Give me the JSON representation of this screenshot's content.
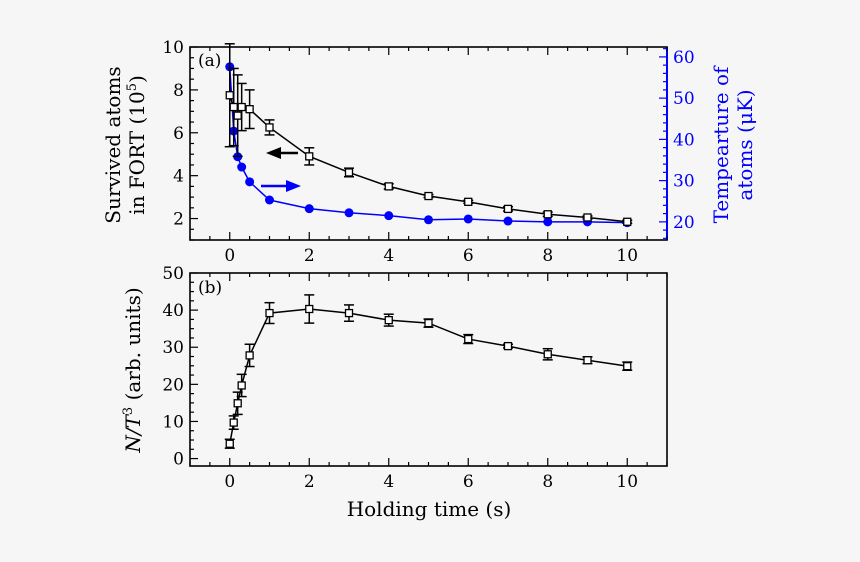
{
  "chart_data": [
    {
      "panel": "(a)",
      "type": "line",
      "title": "",
      "xlabel": "",
      "xlim": [
        -1,
        11
      ],
      "x_ticks": [
        0,
        2,
        4,
        6,
        8,
        10
      ],
      "grid": false,
      "x": [
        0,
        0.1,
        0.2,
        0.3,
        0.5,
        1,
        2,
        3,
        4,
        5,
        6,
        7,
        8,
        9,
        10
      ],
      "y_left": {
        "label": "Survived atoms in FORT (10^5)",
        "label_line1": "Survived atoms",
        "label_line2": "in FORT (10",
        "label_sup": "5",
        "label_close": ")",
        "ylim": [
          1,
          10
        ],
        "ticks": [
          2,
          4,
          6,
          8,
          10
        ],
        "color": "#000000"
      },
      "y_right": {
        "label": "Tempearture of atoms (μK)",
        "label_line1": "Tempearture of",
        "label_line2": "atoms (μK)",
        "ylim": [
          15.6,
          62.4
        ],
        "ticks": [
          20,
          30,
          40,
          50,
          60
        ],
        "color": "#0000ff"
      },
      "series": [
        {
          "name": "Survived atoms",
          "axis": "left",
          "marker": "open-square",
          "color": "#000000",
          "values": [
            7.75,
            7.2,
            6.8,
            7.2,
            7.1,
            6.25,
            4.9,
            4.15,
            3.5,
            3.05,
            2.78,
            2.45,
            2.2,
            2.05,
            1.85
          ],
          "errors": [
            2.4,
            1.8,
            1.9,
            1.1,
            0.9,
            0.35,
            0.4,
            0.2,
            0.12,
            0.07,
            0.07,
            0.1,
            0.1,
            0.07,
            0.07
          ]
        },
        {
          "name": "Temperature",
          "axis": "right",
          "marker": "filled-circle",
          "color": "#0000ff",
          "values": [
            57.6,
            42.0,
            35.8,
            33.3,
            29.7,
            25.3,
            23.2,
            22.2,
            21.5,
            20.5,
            20.7,
            20.2,
            20.0,
            20.0,
            19.8
          ]
        }
      ],
      "annotations": [
        {
          "type": "arrow",
          "direction": "left",
          "color": "#000000",
          "text": "",
          "points_to": "left axis"
        },
        {
          "type": "arrow",
          "direction": "right",
          "color": "#0000ff",
          "text": "",
          "points_to": "right axis"
        }
      ]
    },
    {
      "panel": "(b)",
      "type": "line",
      "title": "",
      "xlabel": "Holding time (s)",
      "ylabel": "N/T^3 (arb. units)",
      "ylabel_parts": {
        "italic": "N/T",
        "sup": "3",
        "rest": " (arb. units)"
      },
      "xlim": [
        -1,
        11
      ],
      "ylim": [
        -2,
        50
      ],
      "x_ticks": [
        0,
        2,
        4,
        6,
        8,
        10
      ],
      "y_ticks": [
        0,
        10,
        20,
        30,
        40,
        50
      ],
      "grid": false,
      "x": [
        0,
        0.1,
        0.2,
        0.3,
        0.5,
        1,
        2,
        3,
        4,
        5,
        6,
        7,
        8,
        9,
        10
      ],
      "series": [
        {
          "name": "N/T^3",
          "marker": "open-square",
          "color": "#000000",
          "values": [
            4.0,
            9.7,
            14.9,
            19.7,
            27.8,
            39.2,
            40.3,
            39.2,
            37.3,
            36.5,
            32.2,
            30.3,
            28.1,
            26.5,
            24.9
          ],
          "errors": [
            1.2,
            1.8,
            3.0,
            3.0,
            3.0,
            2.8,
            3.8,
            2.2,
            1.6,
            1.1,
            1.2,
            0.5,
            1.5,
            0.9,
            1.1
          ]
        }
      ]
    }
  ],
  "labels": {
    "panel_a": "(a)",
    "panel_b": "(b)",
    "xlabel": "Holding time (s)",
    "left_a_line1": "Survived atoms",
    "left_a_line2": "in FORT (10",
    "left_a_sup": "5",
    "left_a_close": ")",
    "right_a_line1": "Tempearture of",
    "right_a_line2": "atoms (μK)",
    "left_b_italic": "N/T",
    "left_b_sup": "3",
    "left_b_rest": " (arb. units)"
  }
}
